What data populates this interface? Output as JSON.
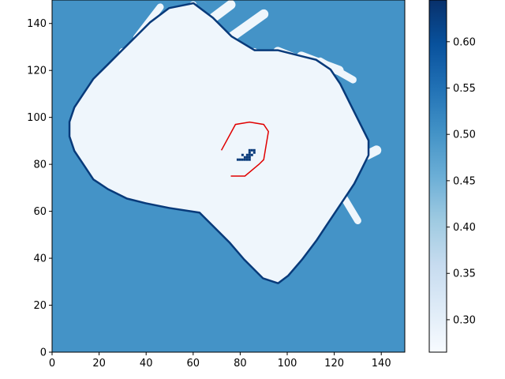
{
  "chart_data": [
    {
      "type": "heatmap",
      "title": "",
      "xlabel": "",
      "ylabel": "",
      "xlim": [
        0,
        150
      ],
      "ylim": [
        0,
        150
      ],
      "xticks": [
        0,
        20,
        40,
        60,
        80,
        100,
        120,
        140
      ],
      "yticks": [
        0,
        20,
        40,
        60,
        80,
        100,
        120,
        140
      ],
      "colormap": "Blues",
      "background_value": 0.5,
      "free_value": 0.28,
      "occupied_value": 0.63,
      "free_region": [
        [
          63,
          60
        ],
        [
          70,
          53
        ],
        [
          76,
          47
        ],
        [
          82,
          40
        ],
        [
          90,
          32
        ],
        [
          96,
          30
        ],
        [
          100,
          33
        ],
        [
          106,
          40
        ],
        [
          112,
          48
        ],
        [
          116,
          54
        ],
        [
          120,
          60
        ],
        [
          124,
          66
        ],
        [
          128,
          72
        ],
        [
          131,
          78
        ],
        [
          134,
          84
        ],
        [
          134,
          90
        ],
        [
          130,
          98
        ],
        [
          126,
          106
        ],
        [
          122,
          114
        ],
        [
          118,
          120
        ],
        [
          112,
          124
        ],
        [
          104,
          126
        ],
        [
          96,
          128
        ],
        [
          86,
          128
        ],
        [
          76,
          134
        ],
        [
          68,
          142
        ],
        [
          60,
          148
        ],
        [
          50,
          146
        ],
        [
          42,
          140
        ],
        [
          36,
          134
        ],
        [
          30,
          128
        ],
        [
          24,
          122
        ],
        [
          18,
          116
        ],
        [
          14,
          110
        ],
        [
          10,
          104
        ],
        [
          8,
          98
        ],
        [
          8,
          92
        ],
        [
          10,
          86
        ],
        [
          14,
          80
        ],
        [
          18,
          74
        ],
        [
          24,
          70
        ],
        [
          32,
          66
        ],
        [
          40,
          64
        ],
        [
          50,
          62
        ]
      ],
      "rays": [
        {
          "from": [
            96,
            128
          ],
          "to": [
            116,
            120
          ],
          "width": 4
        },
        {
          "from": [
            106,
            126
          ],
          "to": [
            122,
            120
          ],
          "width": 4
        },
        {
          "from": [
            114,
            124
          ],
          "to": [
            128,
            116
          ],
          "width": 3
        },
        {
          "from": [
            86,
            128
          ],
          "to": [
            103,
            116
          ],
          "width": 3
        },
        {
          "from": [
            76,
            134
          ],
          "to": [
            90,
            144
          ],
          "width": 4
        },
        {
          "from": [
            68,
            142
          ],
          "to": [
            76,
            148
          ],
          "width": 4
        },
        {
          "from": [
            60,
            148
          ],
          "to": [
            56,
            144
          ],
          "width": 3
        },
        {
          "from": [
            30,
            128
          ],
          "to": [
            31,
            117
          ],
          "width": 3
        },
        {
          "from": [
            36,
            134
          ],
          "to": [
            46,
            147
          ],
          "width": 3
        },
        {
          "from": [
            124,
            66
          ],
          "to": [
            130,
            56
          ],
          "width": 3
        },
        {
          "from": [
            134,
            84
          ],
          "to": [
            138,
            86
          ],
          "width": 4
        }
      ],
      "occupied_cells": [
        [
          84,
          86
        ],
        [
          85,
          86
        ],
        [
          86,
          86
        ],
        [
          84,
          85
        ],
        [
          86,
          85
        ],
        [
          83,
          84
        ],
        [
          84,
          84
        ],
        [
          85,
          84
        ],
        [
          81,
          84
        ],
        [
          82,
          83
        ],
        [
          83,
          83
        ],
        [
          84,
          83
        ],
        [
          80,
          82
        ],
        [
          81,
          82
        ],
        [
          82,
          82
        ],
        [
          83,
          82
        ],
        [
          84,
          82
        ],
        [
          79,
          82
        ]
      ],
      "boundary": [
        [
          63,
          60
        ],
        [
          70,
          53
        ],
        [
          76,
          47
        ],
        [
          82,
          40
        ],
        [
          90,
          32
        ],
        [
          96,
          30
        ],
        [
          100,
          33
        ],
        [
          106,
          40
        ],
        [
          112,
          48
        ],
        [
          116,
          54
        ],
        [
          120,
          60
        ],
        [
          124,
          66
        ],
        [
          128,
          72
        ],
        [
          131,
          78
        ],
        [
          134,
          84
        ],
        [
          134,
          90
        ],
        [
          130,
          98
        ],
        [
          126,
          106
        ],
        [
          122,
          114
        ],
        [
          118,
          120
        ],
        [
          112,
          124
        ],
        [
          104,
          126
        ],
        [
          96,
          128
        ],
        [
          86,
          128
        ],
        [
          76,
          134
        ],
        [
          68,
          142
        ],
        [
          60,
          148
        ],
        [
          50,
          146
        ],
        [
          42,
          140
        ],
        [
          36,
          134
        ],
        [
          30,
          128
        ],
        [
          24,
          122
        ],
        [
          18,
          116
        ],
        [
          14,
          110
        ],
        [
          10,
          104
        ],
        [
          8,
          98
        ],
        [
          8,
          92
        ],
        [
          10,
          86
        ],
        [
          14,
          80
        ],
        [
          18,
          74
        ],
        [
          24,
          70
        ],
        [
          32,
          66
        ],
        [
          40,
          64
        ],
        [
          50,
          62
        ]
      ],
      "path": {
        "color": "#e00000",
        "x": [
          72,
          78,
          84,
          90,
          92,
          91,
          90,
          88,
          82,
          76
        ],
        "y": [
          86,
          97,
          98,
          97,
          94,
          88,
          82,
          80,
          75,
          75
        ]
      },
      "colorbar": {
        "min": 0.265,
        "max": 0.645,
        "ticks": [
          0.3,
          0.35,
          0.4,
          0.45,
          0.5,
          0.55,
          0.6
        ],
        "tick_labels": [
          "0.30",
          "0.35",
          "0.40",
          "0.45",
          "0.50",
          "0.55",
          "0.60"
        ]
      }
    }
  ]
}
